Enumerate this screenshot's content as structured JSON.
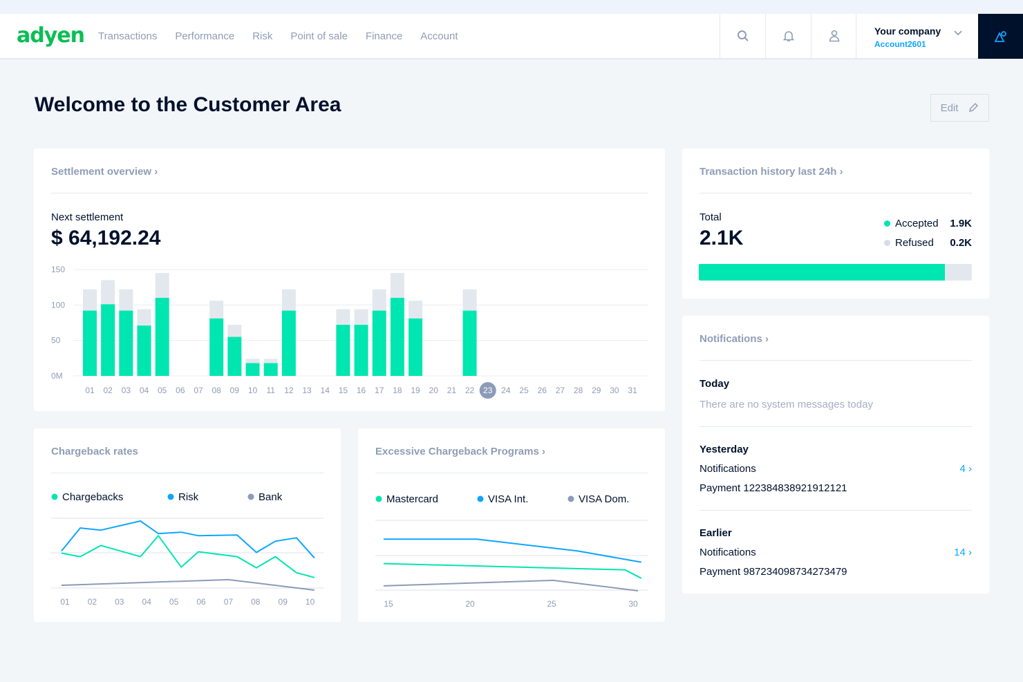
{
  "header": {
    "logo": "adyen",
    "nav": [
      "Transactions",
      "Performance",
      "Risk",
      "Point of sale",
      "Finance",
      "Account"
    ],
    "company": "Your company",
    "account": "Account2601",
    "icons": [
      "search-icon",
      "bell-icon",
      "user-icon",
      "chevron-down-icon",
      "account-switch-icon"
    ]
  },
  "page": {
    "title": "Welcome to the Customer Area",
    "edit_label": "Edit"
  },
  "colors": {
    "accent": "#00e6b0",
    "blue": "#0ea5ff",
    "gray": "#8b9bb8",
    "light": "#e3e8ee",
    "dark": "#00112c"
  },
  "settlement": {
    "title": "Settlement overview ›",
    "next_label": "Next settlement",
    "amount": "$ 64,192.24"
  },
  "transactions": {
    "title": "Transaction history last 24h ›",
    "total_label": "Total",
    "total": "2.1K",
    "accepted_label": "Accepted",
    "accepted": "1.9K",
    "refused_label": "Refused",
    "refused": "0.2K",
    "accepted_fraction": 0.9
  },
  "notifications": {
    "title": "Notifications ›",
    "today": "Today",
    "today_msg": "There are no system messages today",
    "yesterday": "Yesterday",
    "yesterday_label": "Notifications",
    "yesterday_count": "4 ›",
    "yesterday_payment": "Payment 122384838921912121",
    "earlier": "Earlier",
    "earlier_label": "Notifications",
    "earlier_count": "14 ›",
    "earlier_payment": "Payment 987234098734273479"
  },
  "chargeback": {
    "title": "Chargeback rates"
  },
  "excessive": {
    "title": "Excessive Chargeback Programs ›"
  },
  "chart_data": [
    {
      "type": "bar",
      "stacked": true,
      "yticks": [
        "0M",
        "50",
        "100",
        "150"
      ],
      "ylim": [
        0,
        150
      ],
      "grid": true,
      "highlighted": "23",
      "categories": [
        "01",
        "02",
        "03",
        "04",
        "05",
        "06",
        "07",
        "08",
        "09",
        "10",
        "11",
        "12",
        "13",
        "14",
        "15",
        "16",
        "17",
        "18",
        "19",
        "20",
        "21",
        "22",
        "23",
        "24",
        "25",
        "26",
        "27",
        "28",
        "29",
        "30",
        "31"
      ],
      "series": [
        {
          "values": [
            92,
            101,
            92,
            71,
            110,
            0,
            0,
            81,
            55,
            18,
            18,
            92,
            0,
            0,
            72,
            72,
            92,
            110,
            81,
            0,
            0,
            92,
            0,
            0,
            0,
            0,
            0,
            0,
            0,
            0,
            0
          ]
        },
        {
          "values": [
            30,
            34,
            30,
            23,
            35,
            0,
            0,
            25,
            17,
            6,
            6,
            30,
            0,
            0,
            22,
            22,
            30,
            35,
            25,
            0,
            0,
            30,
            0,
            0,
            0,
            0,
            0,
            0,
            0,
            0,
            0
          ]
        }
      ]
    },
    {
      "type": "line",
      "xticks": [
        "01",
        "02",
        "03",
        "04",
        "05",
        "06",
        "07",
        "08",
        "09",
        "10"
      ],
      "ylim": [
        0,
        100
      ],
      "grid": true,
      "legend": "top",
      "series": [
        {
          "name": "Chargebacks",
          "color": "#00e6b0",
          "x": [
            0.87,
            1.56,
            2.32,
            3.77,
            4.43,
            5.27,
            5.9,
            7.32,
            8.03,
            8.72,
            9.5,
            10.16
          ],
          "y": [
            50,
            45,
            61,
            45,
            75,
            30,
            52,
            45,
            29,
            45,
            22,
            15
          ]
        },
        {
          "name": "Risk",
          "color": "#0ea5ff",
          "x": [
            0.87,
            1.56,
            2.32,
            3.77,
            4.43,
            5.27,
            5.9,
            7.32,
            8.03,
            8.72,
            9.5,
            10.16
          ],
          "y": [
            53,
            86,
            83,
            96,
            78,
            80,
            75,
            76,
            51,
            67,
            72,
            43
          ]
        },
        {
          "name": "Bank",
          "color": "#8b9bb8",
          "x": [
            0.87,
            7.0,
            10.16
          ],
          "y": [
            4,
            12,
            -3
          ]
        }
      ]
    },
    {
      "type": "line",
      "xticks": [
        "15",
        "20",
        "25",
        "30"
      ],
      "ylim": [
        0,
        100
      ],
      "grid": true,
      "legend": "top",
      "series": [
        {
          "name": "Mastercard",
          "color": "#00e6b0",
          "x": [
            14.7,
            29.5,
            30.5
          ],
          "y": [
            38,
            29,
            17
          ]
        },
        {
          "name": "VISA Int.",
          "color": "#0ea5ff",
          "x": [
            14.7,
            20.4,
            26.6,
            30.5
          ],
          "y": [
            73,
            73,
            56,
            40
          ]
        },
        {
          "name": "VISA Dom.",
          "color": "#8b9bb8",
          "x": [
            14.7,
            25.1,
            30.3
          ],
          "y": [
            6,
            14,
            -1
          ]
        }
      ]
    }
  ]
}
